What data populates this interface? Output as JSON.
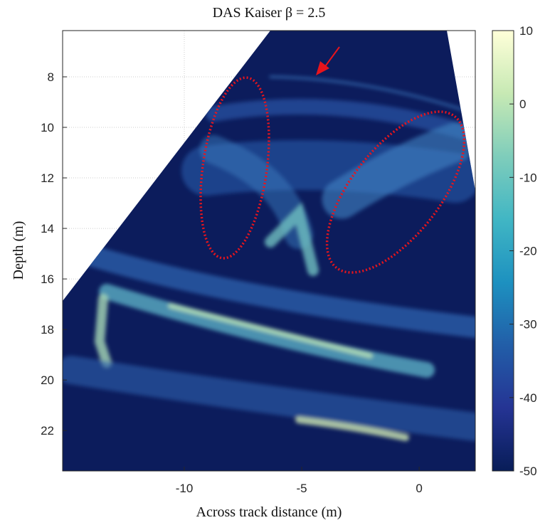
{
  "chart_data": {
    "type": "image",
    "title": "DAS Kaiser β = 2.5",
    "xlabel": "Across track distance (m)",
    "ylabel": "Depth (m)",
    "xlim": [
      -15.18,
      2.39
    ],
    "xticks": [
      -10,
      -5,
      0
    ],
    "ylim": [
      6.17,
      23.6
    ],
    "yticks": [
      8,
      10,
      12,
      14,
      16,
      18,
      20,
      22
    ],
    "y_reversed": true,
    "grid": true,
    "colorbar": {
      "clim": [
        -50,
        10
      ],
      "ticks": [
        -50,
        -40,
        -30,
        -20,
        -10,
        0,
        10
      ],
      "colormap": [
        "#081d58",
        "#253494",
        "#225ea8",
        "#1d91c0",
        "#41b6c4",
        "#7fcdbb",
        "#c7e9b4",
        "#ffffd9"
      ]
    }
  }
}
